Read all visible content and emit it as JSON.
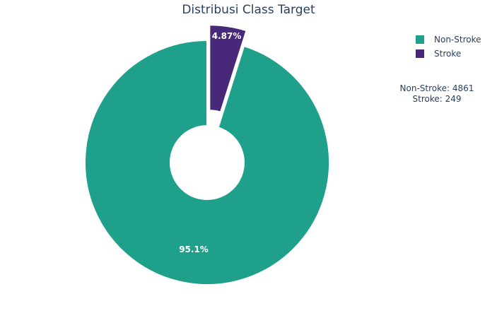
{
  "chart_data": {
    "type": "pie",
    "title": "Distribusi Class Target",
    "hole": true,
    "categories": [
      "Non-Stroke",
      "Stroke"
    ],
    "values": [
      4861,
      249
    ],
    "percent_labels": [
      "95.1%",
      "4.87%"
    ],
    "colors": [
      "#1fa08a",
      "#482878"
    ],
    "pulled_slice": "Stroke",
    "legend_position": "top-right",
    "annotation": [
      "Non-Stroke: 4861",
      "Stroke: 249"
    ]
  }
}
